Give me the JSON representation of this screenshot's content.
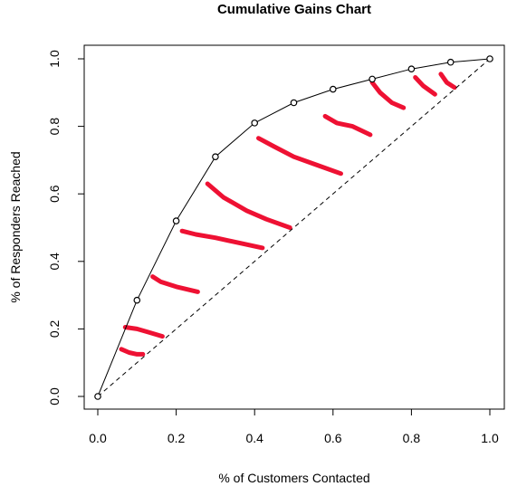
{
  "chart_data": {
    "type": "line",
    "title": "Cumulative Gains Chart",
    "xlabel": "% of Customers Contacted",
    "ylabel": "% of Responders Reached",
    "xlim": [
      0,
      1
    ],
    "ylim": [
      0,
      1
    ],
    "x_ticks": [
      "0.0",
      "0.2",
      "0.4",
      "0.6",
      "0.8",
      "1.0"
    ],
    "y_ticks": [
      "0.0",
      "0.2",
      "0.4",
      "0.6",
      "0.8",
      "1.0"
    ],
    "grid": false,
    "series": [
      {
        "x": [
          0.0,
          0.1,
          0.2,
          0.3,
          0.4,
          0.5,
          0.6,
          0.7,
          0.8,
          0.9,
          1.0
        ],
        "y": [
          0.0,
          0.285,
          0.52,
          0.71,
          0.81,
          0.87,
          0.91,
          0.94,
          0.97,
          0.99,
          1.0
        ],
        "style": "solid line with open circle markers",
        "color": "#000000"
      },
      {
        "x": [
          0.0,
          1.0
        ],
        "y": [
          0.0,
          1.0
        ],
        "style": "dashed diagonal baseline",
        "color": "#000000"
      }
    ],
    "annotations": {
      "type": "red hand-drawn strokes shading area between gains curve and diagonal",
      "color": "#ee1133",
      "strokes": [
        [
          [
            0.06,
            0.14
          ],
          [
            0.08,
            0.13
          ],
          [
            0.1,
            0.125
          ],
          [
            0.115,
            0.125
          ]
        ],
        [
          [
            0.07,
            0.205
          ],
          [
            0.1,
            0.2
          ],
          [
            0.13,
            0.19
          ],
          [
            0.165,
            0.178
          ]
        ],
        [
          [
            0.14,
            0.355
          ],
          [
            0.16,
            0.34
          ],
          [
            0.2,
            0.325
          ],
          [
            0.255,
            0.31
          ]
        ],
        [
          [
            0.215,
            0.49
          ],
          [
            0.25,
            0.48
          ],
          [
            0.3,
            0.47
          ],
          [
            0.36,
            0.455
          ],
          [
            0.42,
            0.44
          ]
        ],
        [
          [
            0.28,
            0.63
          ],
          [
            0.32,
            0.59
          ],
          [
            0.38,
            0.55
          ],
          [
            0.43,
            0.525
          ],
          [
            0.49,
            0.5
          ]
        ],
        [
          [
            0.41,
            0.765
          ],
          [
            0.45,
            0.74
          ],
          [
            0.5,
            0.71
          ],
          [
            0.56,
            0.685
          ],
          [
            0.62,
            0.66
          ]
        ],
        [
          [
            0.58,
            0.83
          ],
          [
            0.61,
            0.81
          ],
          [
            0.65,
            0.8
          ],
          [
            0.695,
            0.775
          ]
        ],
        [
          [
            0.7,
            0.93
          ],
          [
            0.72,
            0.9
          ],
          [
            0.75,
            0.87
          ],
          [
            0.78,
            0.855
          ]
        ],
        [
          [
            0.81,
            0.945
          ],
          [
            0.83,
            0.92
          ],
          [
            0.86,
            0.895
          ]
        ],
        [
          [
            0.875,
            0.955
          ],
          [
            0.89,
            0.93
          ],
          [
            0.91,
            0.915
          ]
        ]
      ]
    }
  }
}
